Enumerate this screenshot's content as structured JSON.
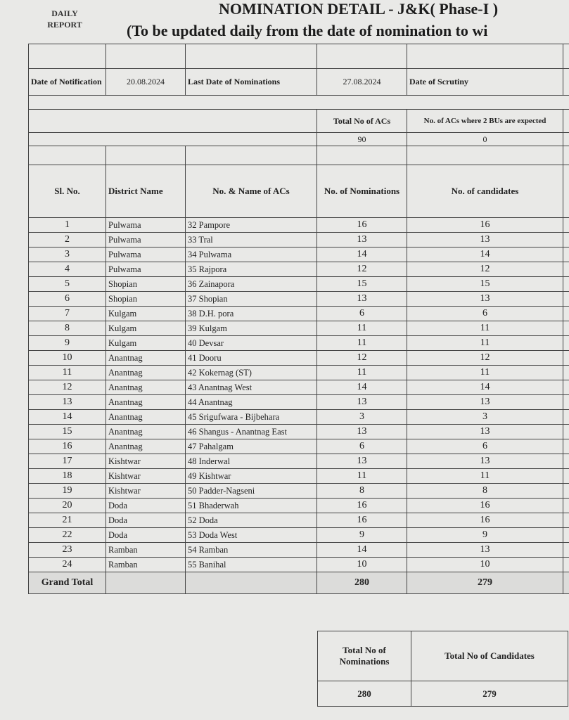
{
  "header": {
    "daily_report": "DAILY REPORT",
    "title": "NOMINATION DETAIL - J&K( Phase-I )",
    "subtitle": "(To be updated daily from the date of nomination to wi"
  },
  "dates": {
    "notification_label": "Date of Notification",
    "notification_value": "20.08.2024",
    "last_date_label": "Last Date of Nominations",
    "last_date_value": "27.08.2024",
    "scrutiny_label": "Date of  Scrutiny"
  },
  "acs": {
    "total_label": "Total No of ACs",
    "total_value": "90",
    "two_bu_label": "No. of ACs  where 2 BUs are expected",
    "two_bu_value": "0"
  },
  "columns": [
    "Sl. No.",
    "District Name",
    "No. & Name of ACs",
    "No. of Nominations",
    "No. of  candidates"
  ],
  "rows": [
    {
      "sl": "1",
      "district": "Pulwama",
      "ac": "32 Pampore",
      "nominations": "16",
      "candidates": "16"
    },
    {
      "sl": "2",
      "district": "Pulwama",
      "ac": "33 Tral",
      "nominations": "13",
      "candidates": "13"
    },
    {
      "sl": "3",
      "district": "Pulwama",
      "ac": "34 Pulwama",
      "nominations": "14",
      "candidates": "14"
    },
    {
      "sl": "4",
      "district": "Pulwama",
      "ac": "35 Rajpora",
      "nominations": "12",
      "candidates": "12"
    },
    {
      "sl": "5",
      "district": "Shopian",
      "ac": "36 Zainapora",
      "nominations": "15",
      "candidates": "15"
    },
    {
      "sl": "6",
      "district": "Shopian",
      "ac": "37 Shopian",
      "nominations": "13",
      "candidates": "13"
    },
    {
      "sl": "7",
      "district": "Kulgam",
      "ac": "38 D.H. pora",
      "nominations": "6",
      "candidates": "6"
    },
    {
      "sl": "8",
      "district": "Kulgam",
      "ac": "39 Kulgam",
      "nominations": "11",
      "candidates": "11"
    },
    {
      "sl": "9",
      "district": "Kulgam",
      "ac": "40 Devsar",
      "nominations": "11",
      "candidates": "11"
    },
    {
      "sl": "10",
      "district": "Anantnag",
      "ac": "41 Dooru",
      "nominations": "12",
      "candidates": "12"
    },
    {
      "sl": "11",
      "district": "Anantnag",
      "ac": "42 Kokernag (ST)",
      "nominations": "11",
      "candidates": "11"
    },
    {
      "sl": "12",
      "district": "Anantnag",
      "ac": "43 Anantnag West",
      "nominations": "14",
      "candidates": "14"
    },
    {
      "sl": "13",
      "district": "Anantnag",
      "ac": "44 Anantnag",
      "nominations": "13",
      "candidates": "13"
    },
    {
      "sl": "14",
      "district": "Anantnag",
      "ac": "45 Srigufwara - Bijbehara",
      "nominations": "3",
      "candidates": "3"
    },
    {
      "sl": "15",
      "district": "Anantnag",
      "ac": "46 Shangus - Anantnag East",
      "nominations": "13",
      "candidates": "13"
    },
    {
      "sl": "16",
      "district": "Anantnag",
      "ac": "47 Pahalgam",
      "nominations": "6",
      "candidates": "6"
    },
    {
      "sl": "17",
      "district": "Kishtwar",
      "ac": "48 Inderwal",
      "nominations": "13",
      "candidates": "13"
    },
    {
      "sl": "18",
      "district": "Kishtwar",
      "ac": "49 Kishtwar",
      "nominations": "11",
      "candidates": "11"
    },
    {
      "sl": "19",
      "district": "Kishtwar",
      "ac": "50 Padder-Nagseni",
      "nominations": "8",
      "candidates": "8"
    },
    {
      "sl": "20",
      "district": "Doda",
      "ac": "51 Bhaderwah",
      "nominations": "16",
      "candidates": "16"
    },
    {
      "sl": "21",
      "district": "Doda",
      "ac": "52 Doda",
      "nominations": "16",
      "candidates": "16"
    },
    {
      "sl": "22",
      "district": "Doda",
      "ac": "53 Doda West",
      "nominations": "9",
      "candidates": "9"
    },
    {
      "sl": "23",
      "district": "Ramban",
      "ac": "54 Ramban",
      "nominations": "14",
      "candidates": "13"
    },
    {
      "sl": "24",
      "district": "Ramban",
      "ac": "55 Banihal",
      "nominations": "10",
      "candidates": "10"
    }
  ],
  "grand_total": {
    "label": "Grand Total",
    "nominations": "280",
    "candidates": "279"
  },
  "summary": {
    "nominations_label": "Total No of Nominations",
    "candidates_label": "Total No of Candidates",
    "nominations_value": "280",
    "candidates_value": "279"
  }
}
